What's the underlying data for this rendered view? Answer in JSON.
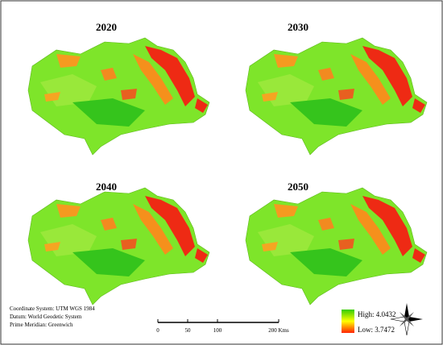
{
  "panels": [
    {
      "title": "2020"
    },
    {
      "title": "2030"
    },
    {
      "title": "2040"
    },
    {
      "title": "2050"
    }
  ],
  "info": {
    "lines": [
      "Coordinate System: UTM WGS 1984",
      "Datum: World Geodetic System",
      "Prime Meridian: Greenwich"
    ]
  },
  "scale_bar": {
    "labels": [
      "0",
      "50",
      "100",
      "200 Kms"
    ]
  },
  "legend": {
    "high": "High: 4.0432",
    "low": "Low: 3.7472"
  }
}
